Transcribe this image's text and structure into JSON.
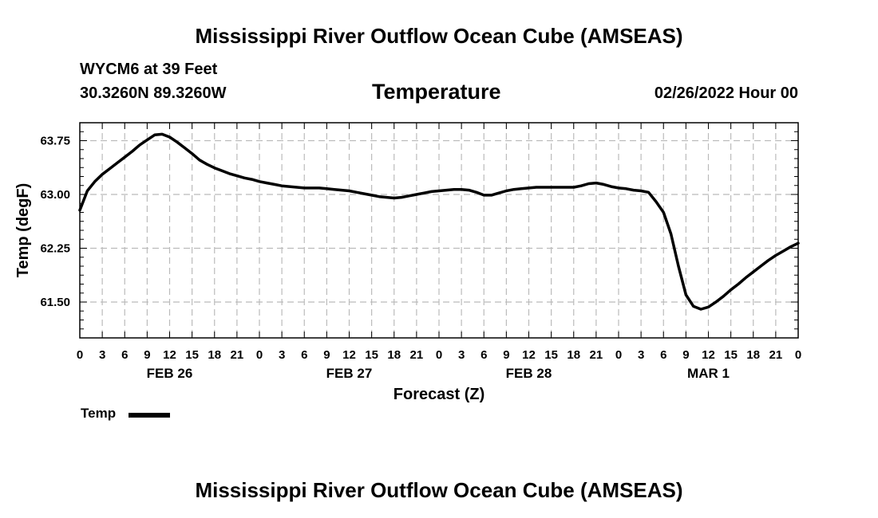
{
  "page": {
    "title_top": "Mississippi River Outflow Ocean Cube (AMSEAS)",
    "title_bottom": "Mississippi River Outflow Ocean Cube (AMSEAS)",
    "station": "WYCM6 at 39 Feet",
    "location": "30.3260N  89.3260W",
    "parameter": "Temperature",
    "issued": "02/26/2022 Hour 00",
    "legend_label": "Temp"
  },
  "colors": {
    "line": "#000000",
    "grid": "#bbbbbb",
    "background": "#ffffff"
  },
  "chart_data": {
    "type": "line",
    "title": "Temperature",
    "xlabel": "Forecast (Z)",
    "ylabel": "Temp (degF)",
    "x_unit": "forecast hours from 02/26/2022 00Z",
    "xlim": [
      0,
      96
    ],
    "ylim": [
      61.0,
      64.0
    ],
    "grid": true,
    "legend": "bottom-left",
    "y_ticks": [
      61.5,
      62.25,
      63.0,
      63.75
    ],
    "y_tick_labels": [
      "61.50",
      "62.25",
      "63.00",
      "63.75"
    ],
    "x_ticks": [
      0,
      3,
      6,
      9,
      12,
      15,
      18,
      21,
      24,
      27,
      30,
      33,
      36,
      39,
      42,
      45,
      48,
      51,
      54,
      57,
      60,
      63,
      66,
      69,
      72,
      75,
      78,
      81,
      84,
      87,
      90,
      93,
      96
    ],
    "x_tick_labels": [
      "0",
      "3",
      "6",
      "9",
      "12",
      "15",
      "18",
      "21",
      "0",
      "3",
      "6",
      "9",
      "12",
      "15",
      "18",
      "21",
      "0",
      "3",
      "6",
      "9",
      "12",
      "15",
      "18",
      "21",
      "0",
      "3",
      "6",
      "9",
      "12",
      "15",
      "18",
      "21",
      "0"
    ],
    "day_labels": [
      {
        "x": 12,
        "label": "FEB 26"
      },
      {
        "x": 36,
        "label": "FEB 27"
      },
      {
        "x": 60,
        "label": "FEB 28"
      },
      {
        "x": 84,
        "label": "MAR 1"
      }
    ],
    "series": [
      {
        "name": "Temp",
        "x": [
          0,
          1,
          2,
          3,
          4,
          5,
          6,
          7,
          8,
          9,
          10,
          11,
          12,
          13,
          14,
          15,
          16,
          17,
          18,
          19,
          20,
          21,
          22,
          23,
          24,
          25,
          26,
          27,
          28,
          29,
          30,
          31,
          32,
          33,
          34,
          35,
          36,
          37,
          38,
          39,
          40,
          41,
          42,
          43,
          44,
          45,
          46,
          47,
          48,
          49,
          50,
          51,
          52,
          53,
          54,
          55,
          56,
          57,
          58,
          59,
          60,
          61,
          62,
          63,
          64,
          65,
          66,
          67,
          68,
          69,
          70,
          71,
          72,
          73,
          74,
          75,
          76,
          77,
          78,
          79,
          80,
          81,
          82,
          83,
          84,
          85,
          86,
          87,
          88,
          89,
          90,
          91,
          92,
          93,
          94,
          95,
          96
        ],
        "values": [
          62.78,
          63.05,
          63.18,
          63.28,
          63.36,
          63.44,
          63.52,
          63.6,
          63.69,
          63.76,
          63.83,
          63.84,
          63.8,
          63.73,
          63.65,
          63.57,
          63.48,
          63.42,
          63.37,
          63.33,
          63.29,
          63.26,
          63.23,
          63.21,
          63.18,
          63.16,
          63.14,
          63.12,
          63.11,
          63.1,
          63.09,
          63.09,
          63.09,
          63.08,
          63.07,
          63.06,
          63.05,
          63.03,
          63.01,
          62.99,
          62.97,
          62.96,
          62.95,
          62.96,
          62.98,
          63.0,
          63.02,
          63.04,
          63.05,
          63.06,
          63.07,
          63.07,
          63.06,
          63.03,
          62.99,
          62.99,
          63.02,
          63.05,
          63.07,
          63.08,
          63.09,
          63.1,
          63.1,
          63.1,
          63.1,
          63.1,
          63.1,
          63.12,
          63.15,
          63.16,
          63.14,
          63.11,
          63.09,
          63.08,
          63.06,
          63.05,
          63.03,
          62.9,
          62.75,
          62.45,
          62.0,
          61.6,
          61.44,
          61.4,
          61.43,
          61.5,
          61.58,
          61.67,
          61.75,
          61.84,
          61.92,
          62.0,
          62.08,
          62.15,
          62.21,
          62.27,
          62.32
        ]
      }
    ]
  }
}
